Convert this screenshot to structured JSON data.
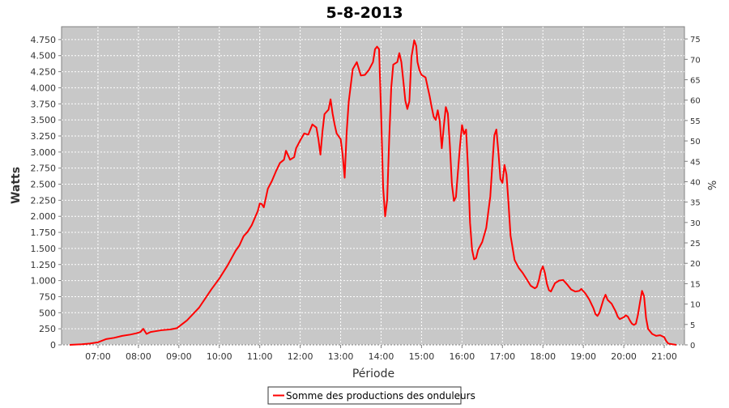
{
  "chart_data": {
    "type": "line",
    "title": "5-8-2013",
    "xlabel": "Période",
    "ylabel": "Watts",
    "ylabel_right": "%",
    "x_unit": "hours",
    "xlim": [
      6.1,
      21.5
    ],
    "x_ticks": [
      {
        "value": 7,
        "label": "07:00"
      },
      {
        "value": 8,
        "label": "08:00"
      },
      {
        "value": 9,
        "label": "09:00"
      },
      {
        "value": 10,
        "label": "10:00"
      },
      {
        "value": 11,
        "label": "11:00"
      },
      {
        "value": 12,
        "label": "12:00"
      },
      {
        "value": 13,
        "label": "13:00"
      },
      {
        "value": 14,
        "label": "14:00"
      },
      {
        "value": 15,
        "label": "15:00"
      },
      {
        "value": 16,
        "label": "16:00"
      },
      {
        "value": 17,
        "label": "17:00"
      },
      {
        "value": 18,
        "label": "18:00"
      },
      {
        "value": 19,
        "label": "19:00"
      },
      {
        "value": 20,
        "label": "20:00"
      },
      {
        "value": 21,
        "label": "21:00"
      }
    ],
    "ylim": [
      0,
      4950
    ],
    "y_ticks": [
      {
        "value": 0,
        "label": "0"
      },
      {
        "value": 250,
        "label": "250"
      },
      {
        "value": 500,
        "label": "500"
      },
      {
        "value": 750,
        "label": "750"
      },
      {
        "value": 1000,
        "label": "1.000"
      },
      {
        "value": 1250,
        "label": "1.250"
      },
      {
        "value": 1500,
        "label": "1.500"
      },
      {
        "value": 1750,
        "label": "1.750"
      },
      {
        "value": 2000,
        "label": "2.000"
      },
      {
        "value": 2250,
        "label": "2.250"
      },
      {
        "value": 2500,
        "label": "2.500"
      },
      {
        "value": 2750,
        "label": "2.750"
      },
      {
        "value": 3000,
        "label": "3.000"
      },
      {
        "value": 3250,
        "label": "3.250"
      },
      {
        "value": 3500,
        "label": "3.500"
      },
      {
        "value": 3750,
        "label": "3.750"
      },
      {
        "value": 4000,
        "label": "4.000"
      },
      {
        "value": 4250,
        "label": "4.250"
      },
      {
        "value": 4500,
        "label": "4.500"
      },
      {
        "value": 4750,
        "label": "4.750"
      }
    ],
    "ylim_right": [
      0,
      78
    ],
    "y_right_ticks": [
      {
        "value": 0,
        "label": "0"
      },
      {
        "value": 5,
        "label": "5"
      },
      {
        "value": 10,
        "label": "10"
      },
      {
        "value": 15,
        "label": "15"
      },
      {
        "value": 20,
        "label": "20"
      },
      {
        "value": 25,
        "label": "25"
      },
      {
        "value": 30,
        "label": "30"
      },
      {
        "value": 35,
        "label": "35"
      },
      {
        "value": 40,
        "label": "40"
      },
      {
        "value": 45,
        "label": "45"
      },
      {
        "value": 50,
        "label": "50"
      },
      {
        "value": 55,
        "label": "55"
      },
      {
        "value": 60,
        "label": "60"
      },
      {
        "value": 65,
        "label": "65"
      },
      {
        "value": 70,
        "label": "70"
      },
      {
        "value": 75,
        "label": "75"
      }
    ],
    "grid": true,
    "legend_position": "bottom-center",
    "series": [
      {
        "name": "Somme des productions des onduleurs",
        "color": "#ff0000",
        "points": [
          [
            6.3,
            0
          ],
          [
            6.6,
            10
          ],
          [
            6.8,
            20
          ],
          [
            7.0,
            40
          ],
          [
            7.2,
            90
          ],
          [
            7.4,
            110
          ],
          [
            7.6,
            140
          ],
          [
            7.8,
            160
          ],
          [
            7.95,
            180
          ],
          [
            8.05,
            200
          ],
          [
            8.12,
            250
          ],
          [
            8.2,
            170
          ],
          [
            8.3,
            200
          ],
          [
            8.4,
            210
          ],
          [
            8.6,
            230
          ],
          [
            8.8,
            240
          ],
          [
            8.95,
            260
          ],
          [
            9.2,
            380
          ],
          [
            9.5,
            580
          ],
          [
            9.8,
            860
          ],
          [
            10.0,
            1030
          ],
          [
            10.2,
            1230
          ],
          [
            10.4,
            1460
          ],
          [
            10.5,
            1550
          ],
          [
            10.6,
            1690
          ],
          [
            10.7,
            1760
          ],
          [
            10.8,
            1860
          ],
          [
            10.95,
            2080
          ],
          [
            11.0,
            2200
          ],
          [
            11.05,
            2190
          ],
          [
            11.1,
            2140
          ],
          [
            11.2,
            2430
          ],
          [
            11.3,
            2550
          ],
          [
            11.4,
            2700
          ],
          [
            11.5,
            2830
          ],
          [
            11.6,
            2880
          ],
          [
            11.65,
            3020
          ],
          [
            11.75,
            2880
          ],
          [
            11.85,
            2920
          ],
          [
            11.9,
            3060
          ],
          [
            12.0,
            3180
          ],
          [
            12.1,
            3290
          ],
          [
            12.2,
            3270
          ],
          [
            12.25,
            3350
          ],
          [
            12.3,
            3430
          ],
          [
            12.4,
            3380
          ],
          [
            12.45,
            3200
          ],
          [
            12.5,
            2960
          ],
          [
            12.55,
            3320
          ],
          [
            12.6,
            3590
          ],
          [
            12.7,
            3660
          ],
          [
            12.75,
            3820
          ],
          [
            12.8,
            3600
          ],
          [
            12.85,
            3430
          ],
          [
            12.9,
            3290
          ],
          [
            13.0,
            3200
          ],
          [
            13.05,
            2960
          ],
          [
            13.1,
            2600
          ],
          [
            13.15,
            3310
          ],
          [
            13.2,
            3780
          ],
          [
            13.3,
            4290
          ],
          [
            13.4,
            4400
          ],
          [
            13.5,
            4190
          ],
          [
            13.6,
            4200
          ],
          [
            13.7,
            4280
          ],
          [
            13.8,
            4400
          ],
          [
            13.85,
            4600
          ],
          [
            13.9,
            4640
          ],
          [
            13.95,
            4600
          ],
          [
            14.0,
            3600
          ],
          [
            14.05,
            2450
          ],
          [
            14.1,
            2000
          ],
          [
            14.15,
            2260
          ],
          [
            14.2,
            3200
          ],
          [
            14.25,
            4000
          ],
          [
            14.3,
            4360
          ],
          [
            14.4,
            4400
          ],
          [
            14.45,
            4540
          ],
          [
            14.5,
            4400
          ],
          [
            14.55,
            4100
          ],
          [
            14.6,
            3800
          ],
          [
            14.65,
            3670
          ],
          [
            14.7,
            3790
          ],
          [
            14.75,
            4470
          ],
          [
            14.82,
            4740
          ],
          [
            14.87,
            4650
          ],
          [
            14.9,
            4400
          ],
          [
            14.95,
            4270
          ],
          [
            15.0,
            4200
          ],
          [
            15.1,
            4160
          ],
          [
            15.2,
            3870
          ],
          [
            15.25,
            3700
          ],
          [
            15.3,
            3550
          ],
          [
            15.35,
            3500
          ],
          [
            15.4,
            3650
          ],
          [
            15.45,
            3480
          ],
          [
            15.5,
            3060
          ],
          [
            15.55,
            3400
          ],
          [
            15.6,
            3700
          ],
          [
            15.65,
            3600
          ],
          [
            15.7,
            3100
          ],
          [
            15.75,
            2500
          ],
          [
            15.8,
            2240
          ],
          [
            15.85,
            2300
          ],
          [
            15.9,
            2700
          ],
          [
            15.95,
            3100
          ],
          [
            16.0,
            3420
          ],
          [
            16.05,
            3280
          ],
          [
            16.1,
            3350
          ],
          [
            16.15,
            2750
          ],
          [
            16.2,
            1900
          ],
          [
            16.25,
            1480
          ],
          [
            16.3,
            1330
          ],
          [
            16.35,
            1350
          ],
          [
            16.4,
            1480
          ],
          [
            16.5,
            1600
          ],
          [
            16.6,
            1820
          ],
          [
            16.7,
            2310
          ],
          [
            16.75,
            2800
          ],
          [
            16.8,
            3260
          ],
          [
            16.85,
            3350
          ],
          [
            16.9,
            3000
          ],
          [
            16.95,
            2580
          ],
          [
            17.0,
            2520
          ],
          [
            17.05,
            2800
          ],
          [
            17.1,
            2650
          ],
          [
            17.15,
            2200
          ],
          [
            17.2,
            1700
          ],
          [
            17.3,
            1320
          ],
          [
            17.4,
            1200
          ],
          [
            17.5,
            1120
          ],
          [
            17.6,
            1020
          ],
          [
            17.7,
            920
          ],
          [
            17.8,
            880
          ],
          [
            17.85,
            900
          ],
          [
            17.9,
            1000
          ],
          [
            17.95,
            1150
          ],
          [
            18.0,
            1220
          ],
          [
            18.05,
            1120
          ],
          [
            18.1,
            950
          ],
          [
            18.15,
            850
          ],
          [
            18.2,
            830
          ],
          [
            18.3,
            960
          ],
          [
            18.4,
            1000
          ],
          [
            18.5,
            1010
          ],
          [
            18.6,
            940
          ],
          [
            18.7,
            860
          ],
          [
            18.8,
            830
          ],
          [
            18.9,
            840
          ],
          [
            18.95,
            870
          ],
          [
            19.05,
            800
          ],
          [
            19.15,
            700
          ],
          [
            19.25,
            570
          ],
          [
            19.3,
            480
          ],
          [
            19.35,
            450
          ],
          [
            19.4,
            500
          ],
          [
            19.5,
            710
          ],
          [
            19.55,
            780
          ],
          [
            19.6,
            700
          ],
          [
            19.7,
            640
          ],
          [
            19.8,
            520
          ],
          [
            19.85,
            440
          ],
          [
            19.9,
            400
          ],
          [
            20.0,
            430
          ],
          [
            20.05,
            460
          ],
          [
            20.1,
            440
          ],
          [
            20.15,
            380
          ],
          [
            20.2,
            330
          ],
          [
            20.25,
            310
          ],
          [
            20.3,
            330
          ],
          [
            20.35,
            470
          ],
          [
            20.4,
            660
          ],
          [
            20.45,
            840
          ],
          [
            20.5,
            760
          ],
          [
            20.55,
            420
          ],
          [
            20.6,
            250
          ],
          [
            20.7,
            170
          ],
          [
            20.8,
            140
          ],
          [
            20.9,
            150
          ],
          [
            21.0,
            120
          ],
          [
            21.05,
            60
          ],
          [
            21.1,
            20
          ],
          [
            21.2,
            10
          ],
          [
            21.3,
            0
          ]
        ]
      }
    ]
  }
}
